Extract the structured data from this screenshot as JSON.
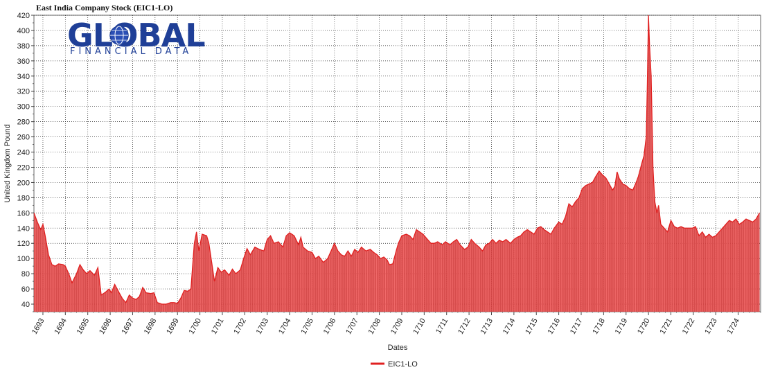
{
  "chart_data": {
    "type": "area",
    "title": "East India Company Stock (EIC1-LO)",
    "xlabel": "Dates",
    "ylabel": "United Kingdom Pound",
    "ylim": [
      30,
      420
    ],
    "yticks": [
      40,
      60,
      80,
      100,
      120,
      140,
      160,
      180,
      200,
      220,
      240,
      260,
      280,
      300,
      320,
      340,
      360,
      380,
      400,
      420
    ],
    "x_tick_labels": [
      "1693",
      "1694",
      "1695",
      "1696",
      "1697",
      "1698",
      "1699",
      "1700",
      "1701",
      "1702",
      "1703",
      "1704",
      "1705",
      "1706",
      "1707",
      "1708",
      "1709",
      "1710",
      "1711",
      "1712",
      "1713",
      "1714",
      "1715",
      "1716",
      "1717",
      "1718",
      "1719",
      "1720",
      "1721",
      "1722",
      "1723",
      "1724"
    ],
    "x_range": [
      1692.6,
      1725.0
    ],
    "grid": true,
    "legend_position": "bottom-center",
    "series": [
      {
        "name": "EIC1-LO",
        "color": "#e02020",
        "fill": "#f05a5a",
        "points": [
          [
            1692.6,
            160
          ],
          [
            1692.75,
            148
          ],
          [
            1692.9,
            138
          ],
          [
            1693.0,
            145
          ],
          [
            1693.1,
            130
          ],
          [
            1693.25,
            105
          ],
          [
            1693.4,
            92
          ],
          [
            1693.55,
            90
          ],
          [
            1693.7,
            93
          ],
          [
            1693.9,
            92
          ],
          [
            1694.0,
            90
          ],
          [
            1694.15,
            80
          ],
          [
            1694.3,
            68
          ],
          [
            1694.5,
            80
          ],
          [
            1694.65,
            92
          ],
          [
            1694.8,
            85
          ],
          [
            1694.95,
            80
          ],
          [
            1695.1,
            84
          ],
          [
            1695.3,
            78
          ],
          [
            1695.45,
            88
          ],
          [
            1695.6,
            52
          ],
          [
            1695.8,
            56
          ],
          [
            1695.95,
            60
          ],
          [
            1696.05,
            55
          ],
          [
            1696.2,
            66
          ],
          [
            1696.4,
            55
          ],
          [
            1696.55,
            47
          ],
          [
            1696.7,
            42
          ],
          [
            1696.85,
            52
          ],
          [
            1697.0,
            48
          ],
          [
            1697.15,
            46
          ],
          [
            1697.3,
            50
          ],
          [
            1697.45,
            62
          ],
          [
            1697.6,
            55
          ],
          [
            1697.8,
            54
          ],
          [
            1697.95,
            55
          ],
          [
            1698.1,
            42
          ],
          [
            1698.3,
            40
          ],
          [
            1698.5,
            40
          ],
          [
            1698.7,
            42
          ],
          [
            1698.85,
            42
          ],
          [
            1699.0,
            41
          ],
          [
            1699.15,
            48
          ],
          [
            1699.3,
            58
          ],
          [
            1699.45,
            57
          ],
          [
            1699.6,
            60
          ],
          [
            1699.75,
            120
          ],
          [
            1699.85,
            135
          ],
          [
            1699.95,
            110
          ],
          [
            1700.1,
            132
          ],
          [
            1700.3,
            130
          ],
          [
            1700.4,
            120
          ],
          [
            1700.55,
            90
          ],
          [
            1700.65,
            70
          ],
          [
            1700.8,
            88
          ],
          [
            1700.95,
            82
          ],
          [
            1701.1,
            85
          ],
          [
            1701.3,
            78
          ],
          [
            1701.45,
            86
          ],
          [
            1701.6,
            80
          ],
          [
            1701.8,
            85
          ],
          [
            1701.95,
            100
          ],
          [
            1702.1,
            113
          ],
          [
            1702.25,
            105
          ],
          [
            1702.45,
            115
          ],
          [
            1702.65,
            112
          ],
          [
            1702.85,
            110
          ],
          [
            1703.0,
            125
          ],
          [
            1703.15,
            130
          ],
          [
            1703.3,
            120
          ],
          [
            1703.5,
            122
          ],
          [
            1703.7,
            115
          ],
          [
            1703.85,
            130
          ],
          [
            1704.0,
            134
          ],
          [
            1704.2,
            130
          ],
          [
            1704.4,
            118
          ],
          [
            1704.5,
            128
          ],
          [
            1704.6,
            115
          ],
          [
            1704.8,
            110
          ],
          [
            1705.0,
            108
          ],
          [
            1705.15,
            100
          ],
          [
            1705.3,
            103
          ],
          [
            1705.5,
            95
          ],
          [
            1705.7,
            100
          ],
          [
            1705.85,
            110
          ],
          [
            1706.0,
            120
          ],
          [
            1706.15,
            110
          ],
          [
            1706.3,
            105
          ],
          [
            1706.45,
            103
          ],
          [
            1706.6,
            110
          ],
          [
            1706.75,
            103
          ],
          [
            1706.9,
            112
          ],
          [
            1707.05,
            108
          ],
          [
            1707.2,
            115
          ],
          [
            1707.4,
            110
          ],
          [
            1707.6,
            112
          ],
          [
            1707.75,
            108
          ],
          [
            1707.9,
            105
          ],
          [
            1708.05,
            100
          ],
          [
            1708.2,
            102
          ],
          [
            1708.35,
            98
          ],
          [
            1708.45,
            92
          ],
          [
            1708.6,
            93
          ],
          [
            1708.75,
            110
          ],
          [
            1708.85,
            120
          ],
          [
            1709.0,
            130
          ],
          [
            1709.2,
            132
          ],
          [
            1709.35,
            130
          ],
          [
            1709.5,
            125
          ],
          [
            1709.65,
            138
          ],
          [
            1709.8,
            135
          ],
          [
            1709.95,
            132
          ],
          [
            1710.15,
            125
          ],
          [
            1710.3,
            120
          ],
          [
            1710.45,
            120
          ],
          [
            1710.6,
            122
          ],
          [
            1710.8,
            118
          ],
          [
            1710.95,
            122
          ],
          [
            1711.15,
            118
          ],
          [
            1711.3,
            122
          ],
          [
            1711.45,
            125
          ],
          [
            1711.6,
            118
          ],
          [
            1711.8,
            112
          ],
          [
            1711.95,
            115
          ],
          [
            1712.1,
            125
          ],
          [
            1712.25,
            120
          ],
          [
            1712.45,
            115
          ],
          [
            1712.6,
            110
          ],
          [
            1712.75,
            118
          ],
          [
            1712.9,
            120
          ],
          [
            1713.05,
            125
          ],
          [
            1713.2,
            120
          ],
          [
            1713.35,
            124
          ],
          [
            1713.5,
            122
          ],
          [
            1713.65,
            125
          ],
          [
            1713.85,
            120
          ],
          [
            1714.0,
            125
          ],
          [
            1714.15,
            128
          ],
          [
            1714.3,
            130
          ],
          [
            1714.45,
            135
          ],
          [
            1714.6,
            138
          ],
          [
            1714.75,
            135
          ],
          [
            1714.9,
            132
          ],
          [
            1715.05,
            140
          ],
          [
            1715.2,
            142
          ],
          [
            1715.35,
            138
          ],
          [
            1715.5,
            135
          ],
          [
            1715.65,
            132
          ],
          [
            1715.8,
            140
          ],
          [
            1716.0,
            148
          ],
          [
            1716.15,
            145
          ],
          [
            1716.3,
            155
          ],
          [
            1716.45,
            172
          ],
          [
            1716.6,
            168
          ],
          [
            1716.75,
            175
          ],
          [
            1716.9,
            180
          ],
          [
            1717.05,
            192
          ],
          [
            1717.2,
            196
          ],
          [
            1717.35,
            198
          ],
          [
            1717.5,
            200
          ],
          [
            1717.65,
            208
          ],
          [
            1717.8,
            215
          ],
          [
            1717.95,
            210
          ],
          [
            1718.1,
            206
          ],
          [
            1718.25,
            198
          ],
          [
            1718.4,
            190
          ],
          [
            1718.5,
            195
          ],
          [
            1718.6,
            214
          ],
          [
            1718.7,
            205
          ],
          [
            1718.85,
            198
          ],
          [
            1719.0,
            196
          ],
          [
            1719.15,
            192
          ],
          [
            1719.3,
            190
          ],
          [
            1719.45,
            200
          ],
          [
            1719.55,
            208
          ],
          [
            1719.7,
            225
          ],
          [
            1719.8,
            235
          ],
          [
            1719.9,
            260
          ],
          [
            1719.95,
            330
          ],
          [
            1720.0,
            420
          ],
          [
            1720.05,
            380
          ],
          [
            1720.12,
            340
          ],
          [
            1720.2,
            220
          ],
          [
            1720.28,
            175
          ],
          [
            1720.38,
            160
          ],
          [
            1720.45,
            170
          ],
          [
            1720.55,
            145
          ],
          [
            1720.7,
            140
          ],
          [
            1720.85,
            135
          ],
          [
            1721.0,
            150
          ],
          [
            1721.15,
            142
          ],
          [
            1721.3,
            140
          ],
          [
            1721.45,
            142
          ],
          [
            1721.6,
            140
          ],
          [
            1721.8,
            140
          ],
          [
            1721.95,
            140
          ],
          [
            1722.1,
            142
          ],
          [
            1722.25,
            130
          ],
          [
            1722.4,
            135
          ],
          [
            1722.55,
            128
          ],
          [
            1722.7,
            132
          ],
          [
            1722.85,
            128
          ],
          [
            1723.0,
            130
          ],
          [
            1723.15,
            135
          ],
          [
            1723.3,
            140
          ],
          [
            1723.45,
            145
          ],
          [
            1723.6,
            150
          ],
          [
            1723.75,
            148
          ],
          [
            1723.9,
            152
          ],
          [
            1724.05,
            145
          ],
          [
            1724.2,
            148
          ],
          [
            1724.35,
            152
          ],
          [
            1724.5,
            150
          ],
          [
            1724.65,
            148
          ],
          [
            1724.8,
            152
          ],
          [
            1724.95,
            160
          ]
        ]
      }
    ]
  },
  "logo": {
    "main_text": "GLOBAL",
    "sub_text": "FINANCIAL DATA"
  }
}
